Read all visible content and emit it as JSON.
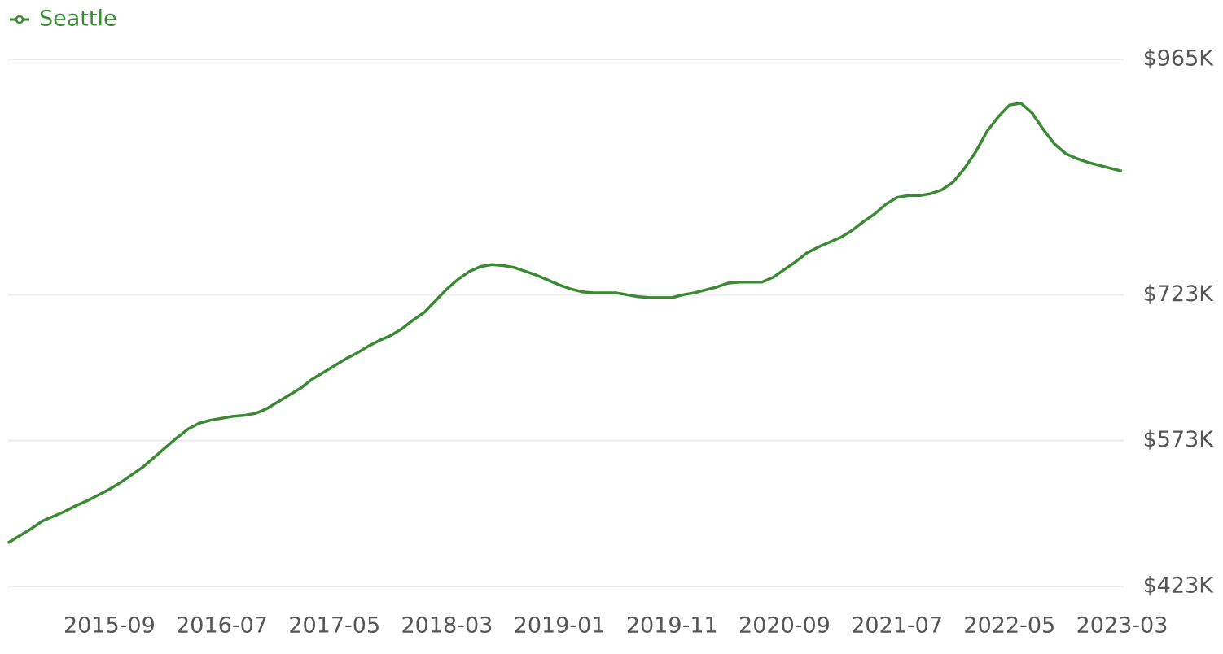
{
  "chart_data": {
    "type": "line",
    "categories": [
      null,
      null,
      null,
      null,
      null,
      null,
      null,
      null,
      null,
      "2015-09",
      null,
      null,
      null,
      null,
      null,
      null,
      null,
      null,
      null,
      "2016-07",
      null,
      null,
      null,
      null,
      null,
      null,
      null,
      null,
      null,
      "2017-05",
      null,
      null,
      null,
      null,
      null,
      null,
      null,
      null,
      null,
      "2018-03",
      null,
      null,
      null,
      null,
      null,
      null,
      null,
      null,
      null,
      "2019-01",
      null,
      null,
      null,
      null,
      null,
      null,
      null,
      null,
      null,
      "2019-11",
      null,
      null,
      null,
      null,
      null,
      null,
      null,
      null,
      null,
      "2020-09",
      null,
      null,
      null,
      null,
      null,
      null,
      null,
      null,
      null,
      "2021-07",
      null,
      null,
      null,
      null,
      null,
      null,
      null,
      null,
      null,
      "2022-05",
      null,
      null,
      null,
      null,
      null,
      null,
      null,
      null,
      null,
      "2023-03"
    ],
    "series": [
      {
        "name": "Seattle",
        "color": "#3a8a34",
        "values": [
          468000,
          475000,
          482000,
          490000,
          495000,
          500000,
          506000,
          511000,
          517000,
          523000,
          530000,
          538000,
          546000,
          556000,
          566000,
          576000,
          585000,
          591000,
          594000,
          596000,
          598000,
          599000,
          601000,
          606000,
          613000,
          620000,
          627000,
          636000,
          643000,
          650000,
          657000,
          663000,
          670000,
          676000,
          681000,
          688000,
          697000,
          705000,
          717000,
          729000,
          739000,
          747000,
          752000,
          754000,
          753000,
          751000,
          747000,
          743000,
          738000,
          733000,
          729000,
          726000,
          725000,
          725000,
          725000,
          723000,
          721000,
          720000,
          720000,
          720000,
          723000,
          725000,
          728000,
          731000,
          735000,
          736000,
          736000,
          736000,
          741000,
          749000,
          757000,
          766000,
          772000,
          777000,
          782000,
          789000,
          798000,
          806000,
          816000,
          823000,
          825000,
          825000,
          827000,
          831000,
          839000,
          853000,
          870000,
          891000,
          906000,
          918000,
          920000,
          910000,
          893000,
          878000,
          868000,
          863000,
          859000,
          856000,
          853000,
          850000
        ]
      }
    ],
    "ylim": [
      423000,
      965000
    ],
    "yticks": [
      {
        "value": 423000,
        "label": "$423K"
      },
      {
        "value": 573000,
        "label": "$573K"
      },
      {
        "value": 723000,
        "label": "$723K"
      },
      {
        "value": 965000,
        "label": "$965K"
      }
    ],
    "grid": true,
    "legend": "top-left"
  }
}
